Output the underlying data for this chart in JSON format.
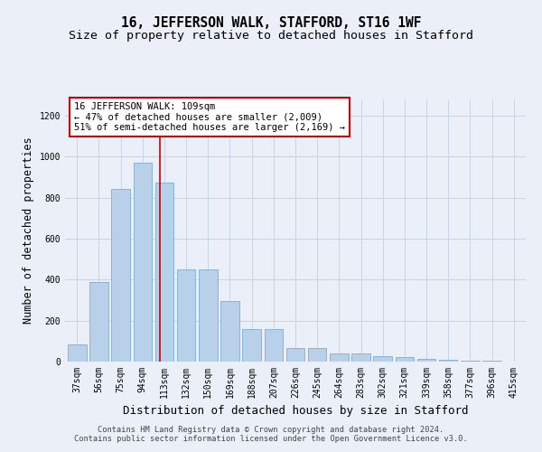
{
  "title": "16, JEFFERSON WALK, STAFFORD, ST16 1WF",
  "subtitle": "Size of property relative to detached houses in Stafford",
  "xlabel": "Distribution of detached houses by size in Stafford",
  "ylabel": "Number of detached properties",
  "categories": [
    "37sqm",
    "56sqm",
    "75sqm",
    "94sqm",
    "113sqm",
    "132sqm",
    "150sqm",
    "169sqm",
    "188sqm",
    "207sqm",
    "226sqm",
    "245sqm",
    "264sqm",
    "283sqm",
    "302sqm",
    "321sqm",
    "339sqm",
    "358sqm",
    "377sqm",
    "396sqm",
    "415sqm"
  ],
  "values": [
    85,
    390,
    845,
    970,
    875,
    450,
    450,
    295,
    160,
    160,
    65,
    65,
    40,
    40,
    25,
    20,
    15,
    10,
    5,
    3,
    2
  ],
  "bar_color": "#b8d0ea",
  "bar_edge_color": "#7aadd4",
  "grid_color": "#c8d4e8",
  "background_color": "#eaeff8",
  "vline_x_index": 3.79,
  "property_label": "16 JEFFERSON WALK: 109sqm",
  "annotation_line1": "← 47% of detached houses are smaller (2,009)",
  "annotation_line2": "51% of semi-detached houses are larger (2,169) →",
  "annotation_box_color": "#ffffff",
  "annotation_box_edge": "#cc0000",
  "vline_color": "#cc0000",
  "title_fontsize": 10.5,
  "subtitle_fontsize": 9.5,
  "axis_label_fontsize": 8.5,
  "tick_fontsize": 7,
  "footnote1": "Contains HM Land Registry data © Crown copyright and database right 2024.",
  "footnote2": "Contains public sector information licensed under the Open Government Licence v3.0.",
  "ylim": [
    0,
    1280
  ],
  "yticks": [
    0,
    200,
    400,
    600,
    800,
    1000,
    1200
  ]
}
